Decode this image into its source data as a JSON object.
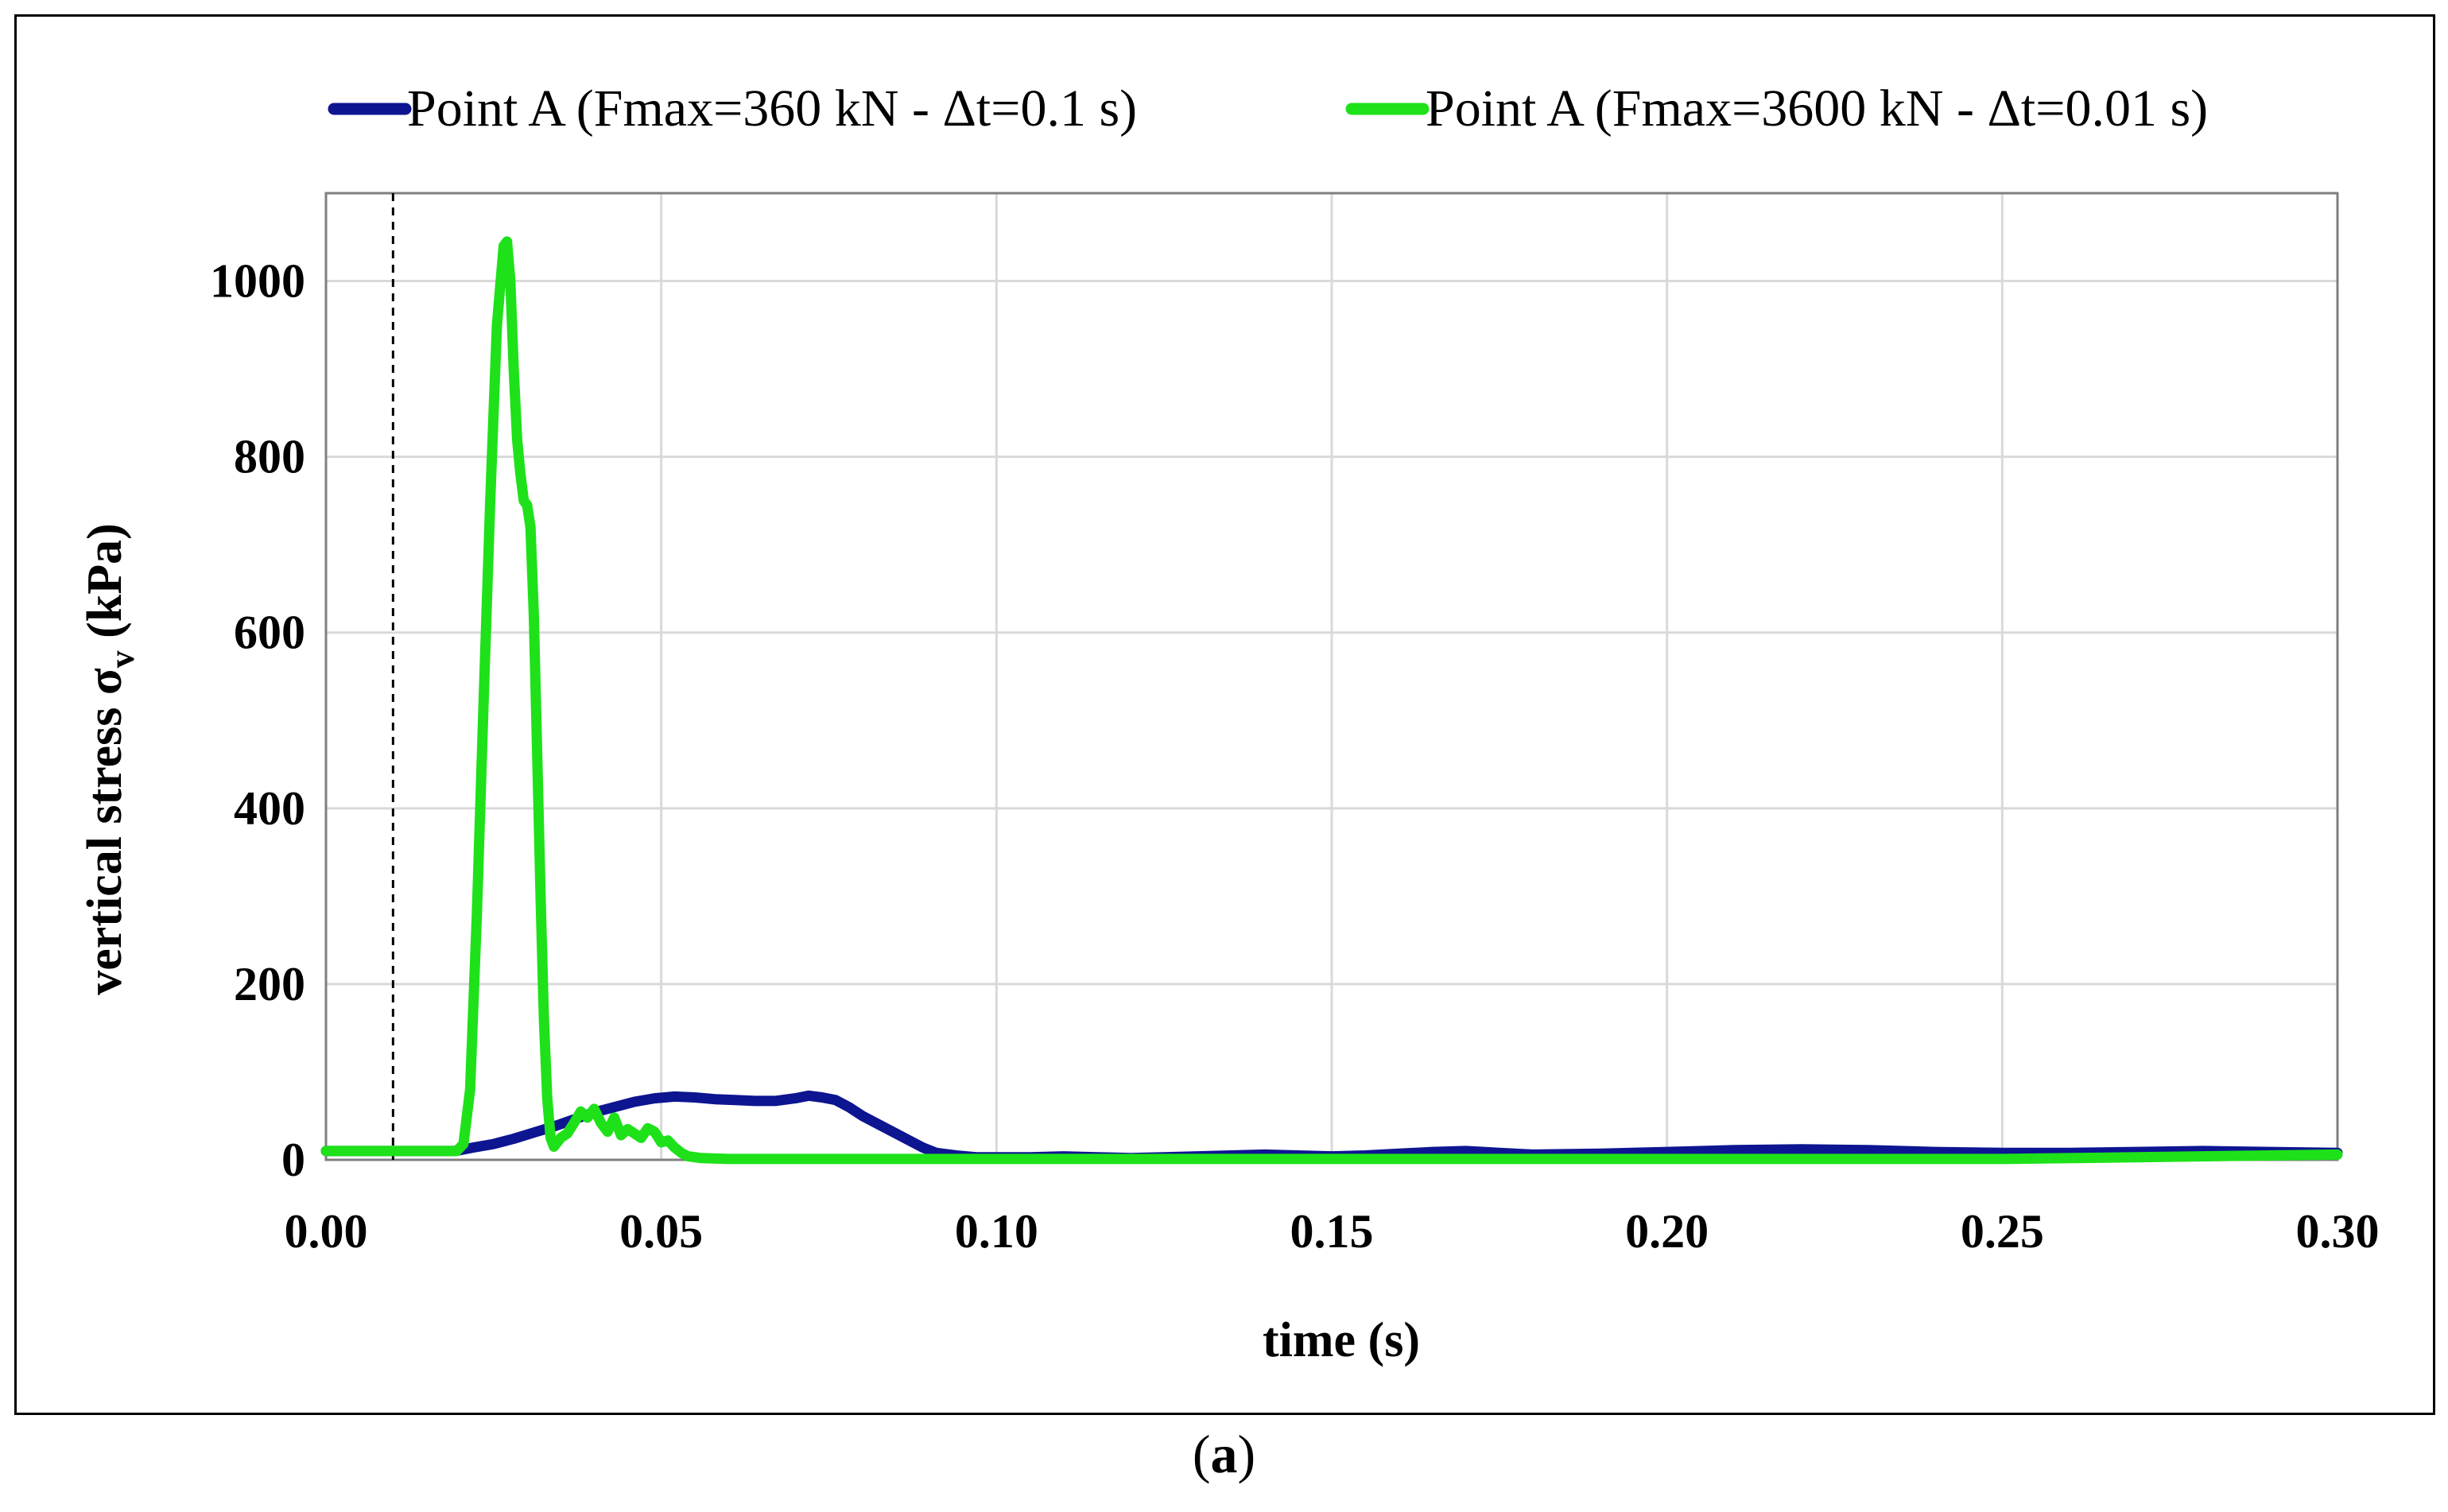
{
  "panel_label": {
    "open": "(",
    "letter": "a",
    "close": ")"
  },
  "colors": {
    "series_a": "#0d1591",
    "series_b": "#1ee11a",
    "grid": "#d9d9d9",
    "axis": "#7f7f7f"
  },
  "chart_data": {
    "type": "line",
    "title": "",
    "xlabel": "time (s)",
    "ylabel_main": "vertical stress σ",
    "ylabel_sub": "v",
    "ylabel_unit": " (kPa)",
    "xlim": [
      0,
      0.3
    ],
    "ylim": [
      0,
      1100
    ],
    "xticks": [
      0.0,
      0.05,
      0.1,
      0.15,
      0.2,
      0.25,
      0.3
    ],
    "xtick_labels": [
      "0.00",
      "0.05",
      "0.10",
      "0.15",
      "0.20",
      "0.25",
      "0.30"
    ],
    "yticks": [
      0,
      200,
      400,
      600,
      800,
      1000
    ],
    "ytick_labels": [
      "0",
      "200",
      "400",
      "600",
      "800",
      "1000"
    ],
    "grid": true,
    "legend_position": "top",
    "vline": {
      "x": 0.01,
      "style": "dashed"
    },
    "series": [
      {
        "name": "Point A (Fmax=360 kN - Δt=0.1 s)",
        "color": "#0d1591",
        "x": [
          0,
          0.019,
          0.02,
          0.022,
          0.025,
          0.028,
          0.031,
          0.034,
          0.037,
          0.04,
          0.043,
          0.046,
          0.049,
          0.052,
          0.055,
          0.058,
          0.061,
          0.064,
          0.067,
          0.07,
          0.072,
          0.074,
          0.076,
          0.078,
          0.08,
          0.083,
          0.086,
          0.089,
          0.091,
          0.094,
          0.097,
          0.1,
          0.105,
          0.11,
          0.115,
          0.12,
          0.125,
          0.13,
          0.135,
          0.14,
          0.145,
          0.15,
          0.155,
          0.16,
          0.165,
          0.17,
          0.175,
          0.18,
          0.19,
          0.2,
          0.21,
          0.22,
          0.23,
          0.24,
          0.25,
          0.26,
          0.27,
          0.28,
          0.29,
          0.3
        ],
        "y": [
          10,
          10,
          11,
          14,
          18,
          24,
          31,
          38,
          46,
          54,
          60,
          66,
          70,
          72,
          71,
          69,
          68,
          67,
          67,
          70,
          73,
          71,
          68,
          60,
          50,
          38,
          26,
          14,
          8,
          5,
          3,
          3,
          3,
          4,
          3,
          2,
          3,
          4,
          5,
          6,
          5,
          4,
          5,
          7,
          9,
          10,
          8,
          6,
          7,
          9,
          11,
          12,
          11,
          9,
          8,
          8,
          9,
          10,
          9,
          8
        ]
      },
      {
        "name": "Point A (Fmax=3600 kN - Δt=0.01 s)",
        "color": "#1ee11a",
        "x": [
          0,
          0.0195,
          0.0205,
          0.0215,
          0.0225,
          0.0235,
          0.0245,
          0.0255,
          0.0265,
          0.027,
          0.0275,
          0.028,
          0.0285,
          0.029,
          0.0295,
          0.03,
          0.0305,
          0.031,
          0.0315,
          0.032,
          0.0325,
          0.033,
          0.0335,
          0.034,
          0.0345,
          0.035,
          0.036,
          0.037,
          0.038,
          0.039,
          0.04,
          0.041,
          0.042,
          0.043,
          0.044,
          0.045,
          0.046,
          0.047,
          0.048,
          0.049,
          0.05,
          0.051,
          0.052,
          0.053,
          0.054,
          0.056,
          0.06,
          0.07,
          0.1,
          0.15,
          0.2,
          0.25,
          0.27,
          0.3
        ],
        "y": [
          10,
          10,
          18,
          80,
          280,
          520,
          750,
          950,
          1040,
          1045,
          1000,
          900,
          820,
          780,
          750,
          745,
          720,
          620,
          460,
          300,
          160,
          70,
          25,
          15,
          20,
          25,
          30,
          42,
          55,
          48,
          58,
          42,
          32,
          48,
          28,
          35,
          30,
          25,
          36,
          32,
          20,
          22,
          14,
          8,
          4,
          2,
          1,
          1,
          1,
          1,
          1,
          1,
          3,
          6
        ]
      }
    ]
  }
}
